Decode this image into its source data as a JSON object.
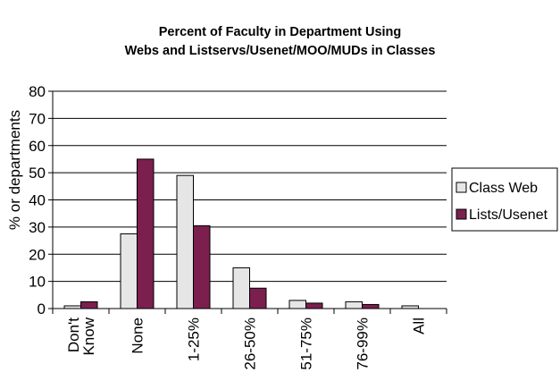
{
  "chart_data": {
    "type": "bar",
    "title_lines": [
      "Percent of Faculty in Department Using",
      "Webs and Listservs/Usenet/MOO/MUDs in Classes"
    ],
    "ylabel": "% or departments",
    "xlabel": "",
    "ylim": [
      0,
      80
    ],
    "yticks": [
      0,
      10,
      20,
      30,
      40,
      50,
      60,
      70,
      80
    ],
    "grid": true,
    "legend_position": "right",
    "categories": [
      "Don't Know",
      "None",
      "1-25%",
      "26-50%",
      "51-75%",
      "76-99%",
      "All"
    ],
    "category_label_lines": [
      [
        "Don't",
        "Know"
      ],
      [
        "None"
      ],
      [
        "1-25%"
      ],
      [
        "26-50%"
      ],
      [
        "51-75%"
      ],
      [
        "76-99%"
      ],
      [
        "All"
      ]
    ],
    "series": [
      {
        "name": "Class Web",
        "color": "#e6e6e6",
        "values": [
          1,
          27.5,
          49,
          15,
          3,
          2.5,
          1
        ]
      },
      {
        "name": "Lists/Usenet",
        "color": "#7b1f4e",
        "values": [
          2.5,
          55,
          30.5,
          7.5,
          2,
          1.5,
          0
        ]
      }
    ]
  }
}
